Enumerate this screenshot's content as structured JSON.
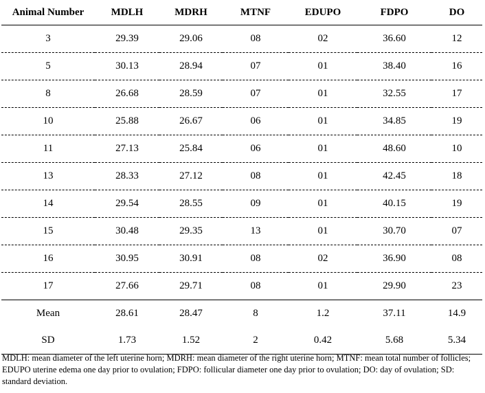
{
  "table": {
    "headers": [
      "Animal Number",
      "MDLH",
      "MDRH",
      "MTNF",
      "EDUPO",
      "FDPO",
      "DO"
    ],
    "rows": [
      [
        "3",
        "29.39",
        "29.06",
        "08",
        "02",
        "36.60",
        "12"
      ],
      [
        "5",
        "30.13",
        "28.94",
        "07",
        "01",
        "38.40",
        "16"
      ],
      [
        "8",
        "26.68",
        "28.59",
        "07",
        "01",
        "32.55",
        "17"
      ],
      [
        "10",
        "25.88",
        "26.67",
        "06",
        "01",
        "34.85",
        "19"
      ],
      [
        "11",
        "27.13",
        "25.84",
        "06",
        "01",
        "48.60",
        "10"
      ],
      [
        "13",
        "28.33",
        "27.12",
        "08",
        "01",
        "42.45",
        "18"
      ],
      [
        "14",
        "29.54",
        "28.55",
        "09",
        "01",
        "40.15",
        "19"
      ],
      [
        "15",
        "30.48",
        "29.35",
        "13",
        "01",
        "30.70",
        "07"
      ],
      [
        "16",
        "30.95",
        "30.91",
        "08",
        "02",
        "36.90",
        "08"
      ],
      [
        "17",
        "27.66",
        "29.71",
        "08",
        "01",
        "29.90",
        "23"
      ]
    ],
    "summary": [
      [
        "Mean",
        "28.61",
        "28.47",
        "8",
        "1.2",
        "37.11",
        "14.9"
      ],
      [
        "SD",
        "1.73",
        "1.52",
        "2",
        "0.42",
        "5.68",
        "5.34"
      ]
    ]
  },
  "footnote": "MDLH: mean diameter of the left uterine horn; MDRH: mean diameter of the right uterine horn; MTNF: mean total number of follicles; EDUPO uterine edema one day prior to ovulation; FDPO: follicular diameter one day prior to ovulation; DO: day of ovulation; SD: standard deviation."
}
